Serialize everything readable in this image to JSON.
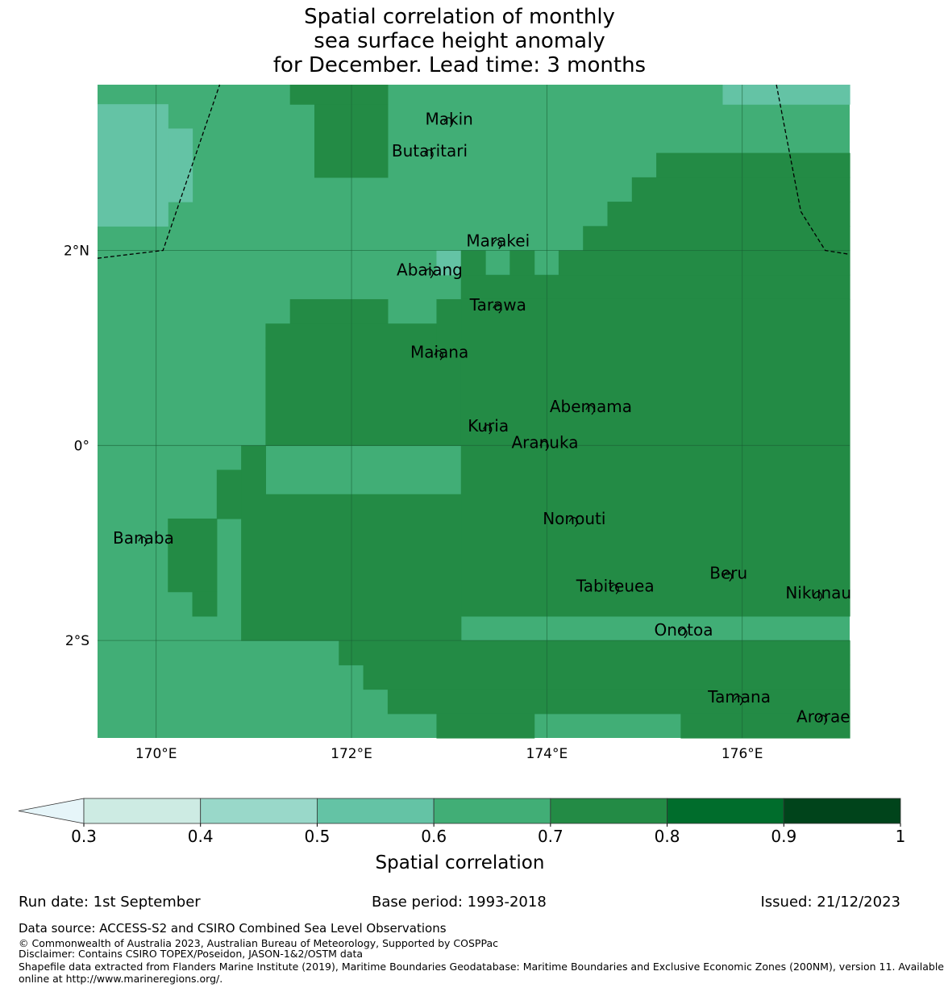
{
  "title": {
    "line1": "Spatial correlation of monthly",
    "line2": "sea surface height anomaly",
    "line3": "for December. Lead time: 3 months"
  },
  "map": {
    "x_ticks": [
      {
        "lon": 170,
        "label": "170°E"
      },
      {
        "lon": 172,
        "label": "172°E"
      },
      {
        "lon": 174,
        "label": "174°E"
      },
      {
        "lon": 176,
        "label": "176°E"
      }
    ],
    "y_ticks": [
      {
        "lat": 2,
        "label": "2°N"
      },
      {
        "lat": 0,
        "label": "0°"
      },
      {
        "lat": -2,
        "label": "2°S"
      }
    ],
    "islands": [
      {
        "name": "Makin",
        "lon": 173.0,
        "lat": 3.35
      },
      {
        "name": "Butaritari",
        "lon": 172.8,
        "lat": 3.02
      },
      {
        "name": "Marakei",
        "lon": 173.5,
        "lat": 2.1
      },
      {
        "name": "Abaiang",
        "lon": 172.8,
        "lat": 1.8
      },
      {
        "name": "Tarawa",
        "lon": 173.5,
        "lat": 1.44
      },
      {
        "name": "Maiana",
        "lon": 172.9,
        "lat": 0.96
      },
      {
        "name": "Abemama",
        "lon": 174.45,
        "lat": 0.4
      },
      {
        "name": "Kuria",
        "lon": 173.4,
        "lat": 0.2
      },
      {
        "name": "Aranuka",
        "lon": 173.98,
        "lat": 0.03
      },
      {
        "name": "Nonouti",
        "lon": 174.28,
        "lat": -0.75
      },
      {
        "name": "Banaba",
        "lon": 169.87,
        "lat": -0.95
      },
      {
        "name": "Beru",
        "lon": 175.86,
        "lat": -1.31
      },
      {
        "name": "Tabiteuea",
        "lon": 174.7,
        "lat": -1.44
      },
      {
        "name": "Nikunau",
        "lon": 176.78,
        "lat": -1.51
      },
      {
        "name": "Onotoa",
        "lon": 175.4,
        "lat": -1.89
      },
      {
        "name": "Tamana",
        "lon": 175.97,
        "lat": -2.58
      },
      {
        "name": "Arorae",
        "lon": 176.83,
        "lat": -2.78
      }
    ]
  },
  "chart_data": {
    "type": "heatmap",
    "variable": "Spatial correlation",
    "extent": {
      "lon_min": 169.4,
      "lon_max": 177.1,
      "lat_min": -3.0,
      "lat_max": 3.7
    },
    "grid_cell_deg": 0.25,
    "class_bounds": [
      0.3,
      0.4,
      0.5,
      0.6,
      0.7,
      0.8,
      0.9,
      1.0
    ],
    "class_colors": [
      "#e6f5f9",
      "#cdebe3",
      "#99d8c9",
      "#64c3a5",
      "#41ae76",
      "#238b45",
      "#006d2c",
      "#00441b"
    ],
    "default_class": 4,
    "regions": [
      {
        "class": 3,
        "lon": [
          169.4,
          170.12
        ],
        "lat": [
          2.25,
          3.5
        ]
      },
      {
        "class": 3,
        "lon": [
          170.12,
          170.37
        ],
        "lat": [
          2.5,
          3.25
        ]
      },
      {
        "class": 3,
        "lon": [
          175.8,
          177.1
        ],
        "lat": [
          3.5,
          3.7
        ]
      },
      {
        "class": 3,
        "lon": [
          172.87,
          173.12
        ],
        "lat": [
          1.75,
          2.0
        ]
      },
      {
        "class": 5,
        "lon": [
          171.37,
          172.37
        ],
        "lat": [
          3.5,
          3.7
        ]
      },
      {
        "class": 5,
        "lon": [
          171.62,
          172.37
        ],
        "lat": [
          2.75,
          3.5
        ]
      },
      {
        "class": 5,
        "lon": [
          171.37,
          172.37
        ],
        "lat": [
          1.25,
          1.5
        ]
      },
      {
        "class": 5,
        "lon": [
          171.12,
          172.87
        ],
        "lat": [
          1.0,
          1.25
        ]
      },
      {
        "class": 5,
        "lon": [
          171.12,
          173.12
        ],
        "lat": [
          0.0,
          1.0
        ]
      },
      {
        "class": 5,
        "lon": [
          173.12,
          177.1
        ],
        "lat": [
          1.5,
          1.75
        ]
      },
      {
        "class": 5,
        "lon": [
          173.12,
          173.37
        ],
        "lat": [
          1.75,
          2.0
        ]
      },
      {
        "class": 5,
        "lon": [
          173.62,
          173.87
        ],
        "lat": [
          1.75,
          2.0
        ]
      },
      {
        "class": 5,
        "lon": [
          174.12,
          177.1
        ],
        "lat": [
          1.75,
          2.0
        ]
      },
      {
        "class": 5,
        "lon": [
          173.12,
          177.1
        ],
        "lat": [
          -1.75,
          1.5
        ]
      },
      {
        "class": 5,
        "lon": [
          172.87,
          173.12
        ],
        "lat": [
          1.0,
          1.5
        ]
      },
      {
        "class": 5,
        "lon": [
          174.37,
          177.1
        ],
        "lat": [
          2.0,
          2.25
        ]
      },
      {
        "class": 5,
        "lon": [
          174.62,
          177.1
        ],
        "lat": [
          2.25,
          2.5
        ]
      },
      {
        "class": 5,
        "lon": [
          174.87,
          177.1
        ],
        "lat": [
          2.5,
          2.75
        ]
      },
      {
        "class": 5,
        "lon": [
          175.12,
          177.1
        ],
        "lat": [
          2.75,
          3.0
        ]
      },
      {
        "class": 5,
        "lon": [
          170.87,
          171.12
        ],
        "lat": [
          -0.5,
          0.0
        ]
      },
      {
        "class": 5,
        "lon": [
          170.62,
          170.87
        ],
        "lat": [
          -0.75,
          -0.25
        ]
      },
      {
        "class": 5,
        "lon": [
          170.12,
          170.62
        ],
        "lat": [
          -1.5,
          -0.75
        ]
      },
      {
        "class": 5,
        "lon": [
          170.37,
          170.62
        ],
        "lat": [
          -1.75,
          -1.5
        ]
      },
      {
        "class": 5,
        "lon": [
          170.87,
          173.12
        ],
        "lat": [
          -2.0,
          -0.5
        ]
      },
      {
        "class": 5,
        "lon": [
          171.87,
          177.1
        ],
        "lat": [
          -2.25,
          -2.0
        ]
      },
      {
        "class": 5,
        "lon": [
          172.12,
          177.1
        ],
        "lat": [
          -2.5,
          -2.25
        ]
      },
      {
        "class": 5,
        "lon": [
          172.37,
          177.1
        ],
        "lat": [
          -2.75,
          -2.5
        ]
      },
      {
        "class": 5,
        "lon": [
          172.87,
          173.87
        ],
        "lat": [
          -3.0,
          -2.75
        ]
      },
      {
        "class": 5,
        "lon": [
          175.37,
          177.1
        ],
        "lat": [
          -3.0,
          -2.75
        ]
      }
    ],
    "boundary_lines": [
      [
        [
          169.4,
          1.92
        ],
        [
          170.07,
          2.0
        ],
        [
          170.65,
          3.7
        ]
      ],
      [
        [
          176.35,
          3.7
        ],
        [
          176.6,
          2.4
        ],
        [
          176.85,
          2.0
        ],
        [
          177.1,
          1.96
        ]
      ]
    ],
    "colorbar": {
      "label": "Spatial correlation",
      "ticks": [
        "0.3",
        "0.4",
        "0.5",
        "0.6",
        "0.7",
        "0.8",
        "0.9",
        "1"
      ],
      "extend": "min"
    }
  },
  "footer": {
    "run_date": "Run date: 1st September",
    "base_period": "Base period: 1993-2018",
    "issued": "Issued: 21/12/2023",
    "data_source": "Data source: ACCESS-S2 and CSIRO Combined Sea Level Observations",
    "copyright": "© Commonwealth of Australia 2023, Australian Bureau of Meteorology, Supported by COSPPac",
    "disclaimer": "Disclaimer: Contains CSIRO TOPEX/Poseidon, JASON-1&2/OSTM data",
    "shapefile_1": "Shapefile data extracted from Flanders Marine Institute (2019), Maritime Boundaries Geodatabase: Maritime Boundaries and Exclusive Economic Zones (200NM), version 11. Available",
    "shapefile_2": "online at http://www.marineregions.org/."
  }
}
